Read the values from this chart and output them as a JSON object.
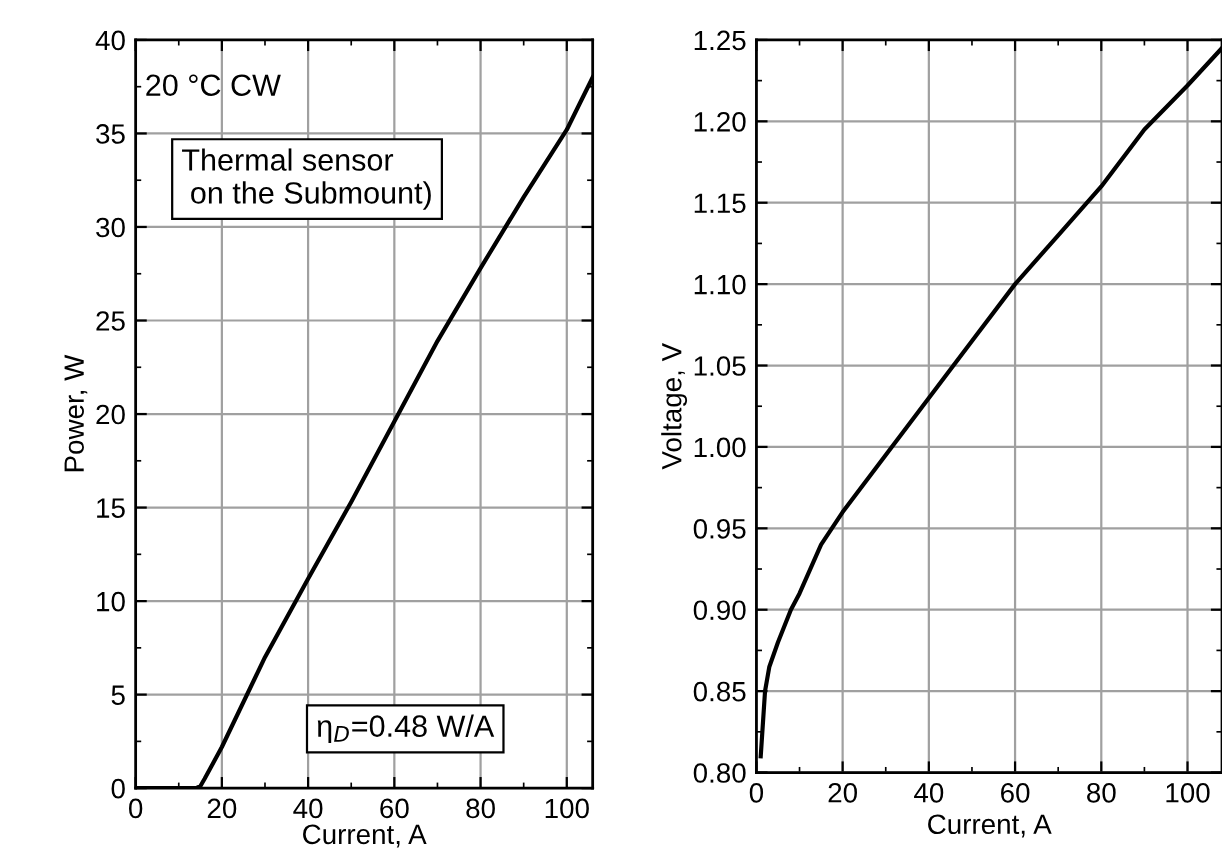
{
  "chart_data": [
    {
      "type": "line",
      "xlabel": "Current, A",
      "ylabel": "Power, W",
      "xlim": [
        0,
        106
      ],
      "ylim": [
        0,
        40
      ],
      "xticks": [
        0,
        {
          "value": 10,
          "label": null
        },
        20,
        {
          "value": 30,
          "label": null
        },
        40,
        {
          "value": 50,
          "label": null
        },
        60,
        {
          "value": 70,
          "label": null
        },
        80,
        {
          "value": 90,
          "label": null
        },
        100
      ],
      "yticks": [
        0,
        {
          "value": 2.5,
          "label": null
        },
        5,
        {
          "value": 7.5,
          "label": null
        },
        10,
        {
          "value": 12.5,
          "label": null
        },
        15,
        {
          "value": 17.5,
          "label": null
        },
        20,
        {
          "value": 22.5,
          "label": null
        },
        25,
        {
          "value": 27.5,
          "label": null
        },
        30,
        {
          "value": 32.5,
          "label": null
        },
        35,
        {
          "value": 37.5,
          "label": null
        },
        40
      ],
      "grid": true,
      "legend": false,
      "series": [
        {
          "color": "#000000",
          "x": [
            0,
            5,
            10,
            14,
            15,
            16,
            20,
            30,
            40,
            50,
            60,
            70,
            80,
            90,
            100,
            103,
            106
          ],
          "values": [
            0,
            0,
            0,
            0,
            0.1,
            0.5,
            2.2,
            7,
            11.2,
            15.3,
            19.6,
            23.9,
            27.8,
            31.6,
            35.2,
            36.6,
            38.0
          ]
        }
      ],
      "annotations": [
        "20 °C CW",
        "Thermal sensor\n on the Submount)",
        "η$_{D}$=0.48 W/A"
      ]
    },
    {
      "type": "line",
      "xlabel": "Current, A",
      "ylabel": "Voltage, V",
      "xlim": [
        0,
        108
      ],
      "ylim": [
        0.8,
        1.25
      ],
      "xticks": [
        0,
        {
          "value": 10,
          "label": null
        },
        20,
        {
          "value": 30,
          "label": null
        },
        40,
        {
          "value": 50,
          "label": null
        },
        60,
        {
          "value": 70,
          "label": null
        },
        80,
        {
          "value": 90,
          "label": null
        },
        100
      ],
      "yticks": [
        {
          "value": 0.8,
          "label": "0.80"
        },
        {
          "value": 0.825,
          "label": null
        },
        {
          "value": 0.85,
          "label": "0.85"
        },
        {
          "value": 0.875,
          "label": null
        },
        {
          "value": 0.9,
          "label": "0.90"
        },
        {
          "value": 0.925,
          "label": null
        },
        {
          "value": 0.95,
          "label": "0.95"
        },
        {
          "value": 0.975,
          "label": null
        },
        {
          "value": 1.0,
          "label": "1.00"
        },
        {
          "value": 1.025,
          "label": null
        },
        {
          "value": 1.05,
          "label": "1.05"
        },
        {
          "value": 1.075,
          "label": null
        },
        {
          "value": 1.1,
          "label": "1.10"
        },
        {
          "value": 1.125,
          "label": null
        },
        {
          "value": 1.15,
          "label": "1.15"
        },
        {
          "value": 1.175,
          "label": null
        },
        {
          "value": 1.2,
          "label": "1.20"
        },
        {
          "value": 1.225,
          "label": null
        },
        {
          "value": 1.25,
          "label": "1.25"
        }
      ],
      "grid": true,
      "legend": false,
      "series": [
        {
          "color": "#000000",
          "x": [
            1,
            2,
            3,
            5,
            8,
            10,
            15,
            20,
            30,
            40,
            50,
            60,
            70,
            80,
            90,
            100,
            108
          ],
          "values": [
            0.81,
            0.85,
            0.865,
            0.88,
            0.9,
            0.91,
            0.94,
            0.96,
            0.995,
            1.03,
            1.065,
            1.1,
            1.13,
            1.16,
            1.195,
            1.222,
            1.245
          ]
        }
      ]
    }
  ]
}
